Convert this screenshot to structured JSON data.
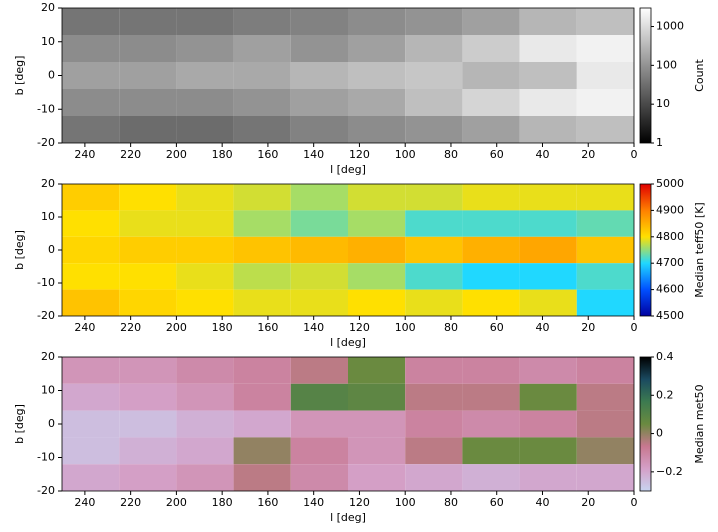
{
  "chart_data": [
    {
      "type": "heatmap",
      "xlabel": "l  [deg]",
      "ylabel": "b  [deg]",
      "xlim": [
        250,
        0
      ],
      "xticks": [
        240,
        220,
        200,
        180,
        160,
        140,
        120,
        100,
        80,
        60,
        40,
        20,
        0
      ],
      "ylim": [
        -20,
        20
      ],
      "yticks": [
        -20,
        -10,
        0,
        10,
        20
      ],
      "x_edges": [
        250,
        225,
        200,
        175,
        150,
        125,
        100,
        75,
        50,
        25,
        0
      ],
      "y_edges": [
        20,
        12,
        4,
        -4,
        -12,
        -20
      ],
      "z": [
        [
          40,
          40,
          40,
          50,
          60,
          80,
          100,
          150,
          300,
          400
        ],
        [
          80,
          80,
          100,
          150,
          100,
          150,
          300,
          600,
          1500,
          2000
        ],
        [
          150,
          150,
          200,
          200,
          300,
          400,
          500,
          300,
          400,
          1500
        ],
        [
          80,
          80,
          80,
          100,
          150,
          200,
          400,
          800,
          1500,
          2000
        ],
        [
          40,
          30,
          30,
          40,
          60,
          80,
          100,
          150,
          300,
          400
        ]
      ],
      "colorbar_label": "Count",
      "colorbar_log": true,
      "colorbar_lim": [
        1,
        3000
      ],
      "colorbar_ticks": [
        1,
        10,
        100,
        1000
      ],
      "colormap": [
        "#000000",
        "#ffffff"
      ]
    },
    {
      "type": "heatmap",
      "xlabel": "l  [deg]",
      "ylabel": "b  [deg]",
      "xlim": [
        250,
        0
      ],
      "xticks": [
        240,
        220,
        200,
        180,
        160,
        140,
        120,
        100,
        80,
        60,
        40,
        20,
        0
      ],
      "ylim": [
        -20,
        20
      ],
      "yticks": [
        -20,
        -10,
        0,
        10,
        20
      ],
      "x_edges": [
        250,
        225,
        200,
        175,
        150,
        125,
        100,
        75,
        50,
        25,
        0
      ],
      "y_edges": [
        20,
        12,
        4,
        -4,
        -12,
        -20
      ],
      "z": [
        [
          4820,
          4800,
          4790,
          4780,
          4760,
          4780,
          4780,
          4790,
          4790,
          4790
        ],
        [
          4800,
          4790,
          4790,
          4760,
          4740,
          4760,
          4720,
          4720,
          4720,
          4730
        ],
        [
          4810,
          4820,
          4820,
          4830,
          4840,
          4850,
          4830,
          4850,
          4860,
          4830
        ],
        [
          4800,
          4800,
          4790,
          4770,
          4780,
          4760,
          4720,
          4700,
          4700,
          4720
        ],
        [
          4830,
          4810,
          4800,
          4790,
          4790,
          4800,
          4790,
          4800,
          4790,
          4700
        ]
      ],
      "colorbar_label": "Median teff50  [K]",
      "colorbar_log": false,
      "colorbar_lim": [
        4500,
        5000
      ],
      "colorbar_ticks": [
        4500,
        4600,
        4700,
        4800,
        4900,
        5000
      ],
      "colormap": [
        "#0000a0",
        "#0050ff",
        "#20d8ff",
        "#ffe000",
        "#ff8000",
        "#e00000"
      ]
    },
    {
      "type": "heatmap",
      "xlabel": "l  [deg]",
      "ylabel": "b  [deg]",
      "xlim": [
        250,
        0
      ],
      "xticks": [
        240,
        220,
        200,
        180,
        160,
        140,
        120,
        100,
        80,
        60,
        40,
        20,
        0
      ],
      "ylim": [
        -20,
        20
      ],
      "yticks": [
        -20,
        -10,
        0,
        10,
        20
      ],
      "x_edges": [
        250,
        225,
        200,
        175,
        150,
        125,
        100,
        75,
        50,
        25,
        0
      ],
      "y_edges": [
        20,
        12,
        4,
        -4,
        -12,
        -20
      ],
      "z": [
        [
          -0.15,
          -0.15,
          -0.12,
          -0.1,
          -0.05,
          0.05,
          -0.1,
          -0.1,
          -0.12,
          -0.1
        ],
        [
          -0.2,
          -0.18,
          -0.15,
          -0.1,
          0.1,
          0.08,
          -0.05,
          -0.05,
          0.05,
          -0.05
        ],
        [
          -0.25,
          -0.25,
          -0.22,
          -0.2,
          -0.15,
          -0.15,
          -0.1,
          -0.12,
          -0.1,
          -0.05
        ],
        [
          -0.25,
          -0.22,
          -0.2,
          0.0,
          -0.1,
          -0.15,
          -0.05,
          0.05,
          0.05,
          0.0
        ],
        [
          -0.2,
          -0.18,
          -0.15,
          -0.05,
          -0.12,
          -0.18,
          -0.2,
          -0.22,
          -0.2,
          -0.2
        ]
      ],
      "colorbar_label": "Median met50",
      "colorbar_log": false,
      "colorbar_lim": [
        -0.3,
        0.4
      ],
      "colorbar_ticks": [
        {
          "value": -0.2,
          "label": "−0.2"
        },
        0,
        0.2,
        0.4
      ],
      "colormap": [
        "#c8d4f0",
        "#d4a0c8",
        "#c87890",
        "#6a8a40",
        "#3c7a50",
        "#1a4a60",
        "#000000"
      ]
    }
  ]
}
